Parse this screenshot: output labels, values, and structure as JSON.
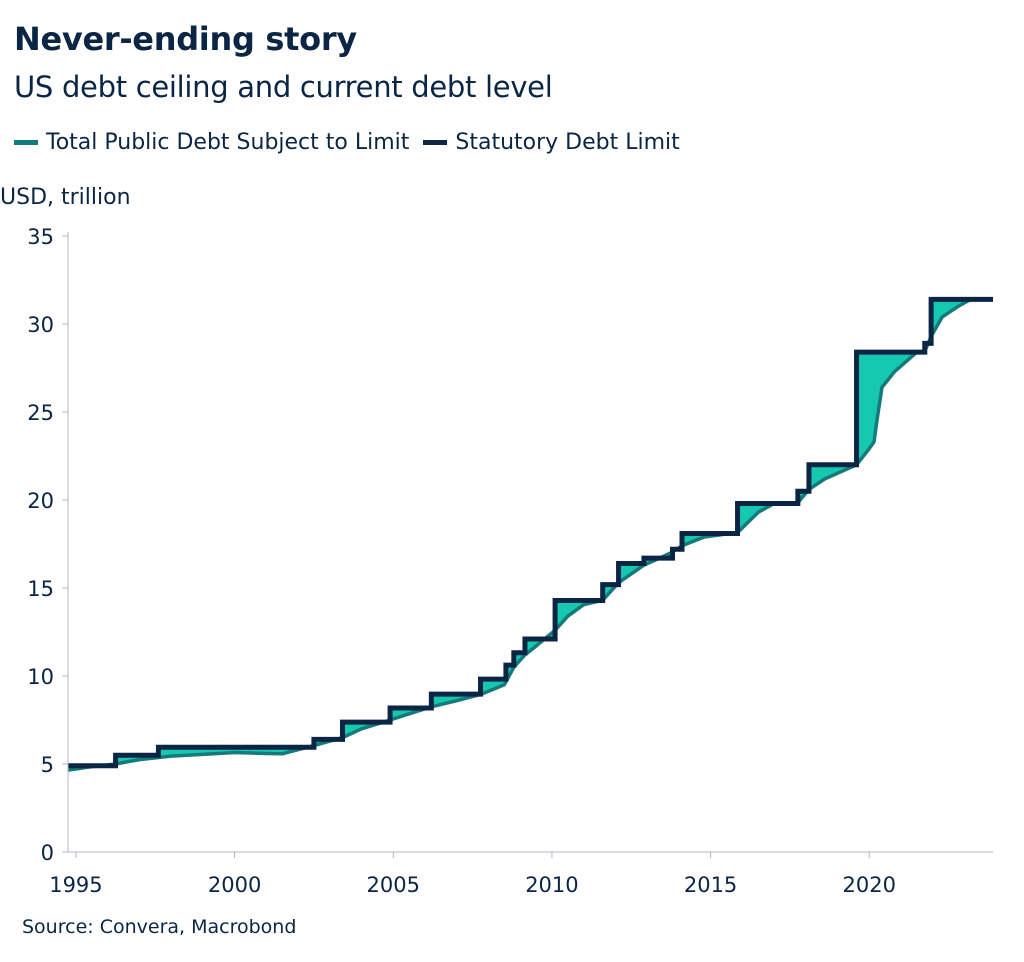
{
  "title": "Never-ending story",
  "subtitle": "US debt ceiling and current debt level",
  "legend": [
    {
      "label": "Total Public Debt Subject to Limit",
      "color": "#157a7a"
    },
    {
      "label": "Statutory Debt Limit",
      "color": "#0b2545"
    }
  ],
  "source": "Source: Convera, Macrobond",
  "chart_data": {
    "type": "area",
    "ylabel": "USD, trillion",
    "ylim": [
      0,
      35
    ],
    "xlim": [
      1994.75,
      2023.9
    ],
    "y_ticks": [
      "0",
      "5",
      "10",
      "15",
      "20",
      "25",
      "30",
      "35"
    ],
    "x_ticks": [
      "1995",
      "2000",
      "2005",
      "2010",
      "2015",
      "2020"
    ],
    "grid": false,
    "legend_position": "top-left",
    "fill_color": "#16c8b0",
    "series": [
      {
        "name": "Statutory Debt Limit",
        "color": "#0b2545",
        "step": true,
        "points": [
          [
            1994.75,
            4.9
          ],
          [
            1996.25,
            5.5
          ],
          [
            1997.6,
            5.95
          ],
          [
            2002.5,
            6.4
          ],
          [
            2003.4,
            7.38
          ],
          [
            2004.9,
            8.18
          ],
          [
            2006.2,
            8.97
          ],
          [
            2007.75,
            9.82
          ],
          [
            2008.55,
            10.62
          ],
          [
            2008.8,
            11.32
          ],
          [
            2009.15,
            12.1
          ],
          [
            2010.1,
            14.29
          ],
          [
            2011.6,
            15.19
          ],
          [
            2012.1,
            16.39
          ],
          [
            2012.9,
            16.7
          ],
          [
            2013.4,
            16.7
          ],
          [
            2013.8,
            17.2
          ],
          [
            2014.1,
            18.1
          ],
          [
            2015.85,
            19.8
          ],
          [
            2017.75,
            20.5
          ],
          [
            2018.1,
            22.0
          ],
          [
            2019.6,
            28.4
          ],
          [
            2021.75,
            28.9
          ],
          [
            2021.95,
            31.4
          ],
          [
            2023.9,
            31.4
          ]
        ]
      },
      {
        "name": "Total Public Debt Subject to Limit",
        "color": "#157a7a",
        "points": [
          [
            1994.75,
            4.65
          ],
          [
            1995.5,
            4.85
          ],
          [
            1996.25,
            5.0
          ],
          [
            1997.0,
            5.25
          ],
          [
            1998.0,
            5.45
          ],
          [
            1999.0,
            5.55
          ],
          [
            2000.0,
            5.65
          ],
          [
            2001.0,
            5.6
          ],
          [
            2001.5,
            5.58
          ],
          [
            2002.5,
            6.05
          ],
          [
            2003.4,
            6.5
          ],
          [
            2004.0,
            7.0
          ],
          [
            2004.9,
            7.5
          ],
          [
            2005.5,
            7.85
          ],
          [
            2006.2,
            8.25
          ],
          [
            2007.0,
            8.6
          ],
          [
            2007.75,
            8.95
          ],
          [
            2008.5,
            9.5
          ],
          [
            2008.8,
            10.5
          ],
          [
            2009.15,
            11.2
          ],
          [
            2009.5,
            11.7
          ],
          [
            2010.1,
            12.6
          ],
          [
            2010.5,
            13.4
          ],
          [
            2011.0,
            14.05
          ],
          [
            2011.6,
            14.3
          ],
          [
            2012.1,
            15.3
          ],
          [
            2012.9,
            16.3
          ],
          [
            2013.4,
            16.7
          ],
          [
            2013.8,
            17.05
          ],
          [
            2014.1,
            17.4
          ],
          [
            2014.8,
            17.9
          ],
          [
            2015.85,
            18.15
          ],
          [
            2016.5,
            19.3
          ],
          [
            2017.0,
            19.8
          ],
          [
            2017.75,
            19.85
          ],
          [
            2018.1,
            20.6
          ],
          [
            2018.6,
            21.2
          ],
          [
            2019.6,
            22.0
          ],
          [
            2019.95,
            22.8
          ],
          [
            2020.15,
            23.3
          ],
          [
            2020.25,
            24.6
          ],
          [
            2020.4,
            26.4
          ],
          [
            2020.8,
            27.3
          ],
          [
            2021.5,
            28.4
          ],
          [
            2021.75,
            28.45
          ],
          [
            2021.95,
            29.3
          ],
          [
            2022.3,
            30.4
          ],
          [
            2022.8,
            31.0
          ],
          [
            2023.2,
            31.4
          ],
          [
            2023.9,
            31.4
          ]
        ]
      }
    ]
  }
}
